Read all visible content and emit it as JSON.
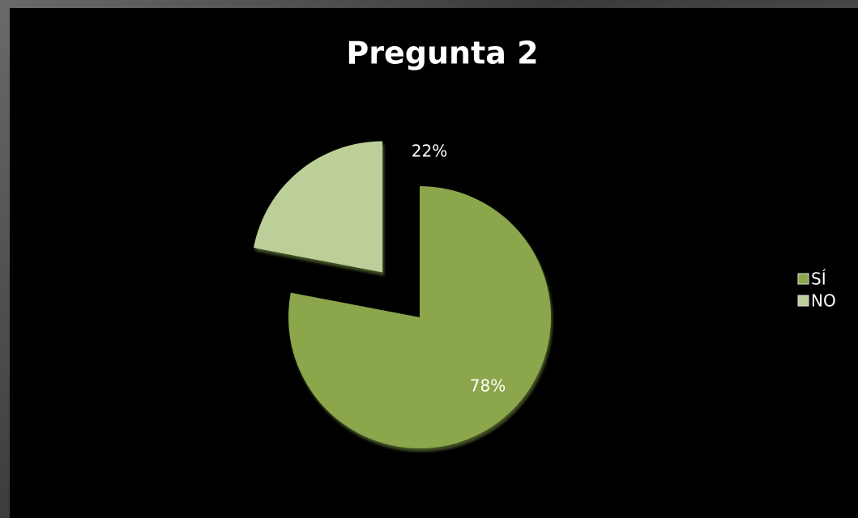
{
  "chart_data": {
    "type": "pie",
    "title": "Pregunta 2",
    "categories": [
      "SÍ",
      "NO"
    ],
    "values": [
      78,
      22
    ],
    "value_labels": [
      "78%",
      "22%"
    ],
    "colors": [
      "#8ba64b",
      "#bccf98"
    ],
    "legend": "right"
  }
}
